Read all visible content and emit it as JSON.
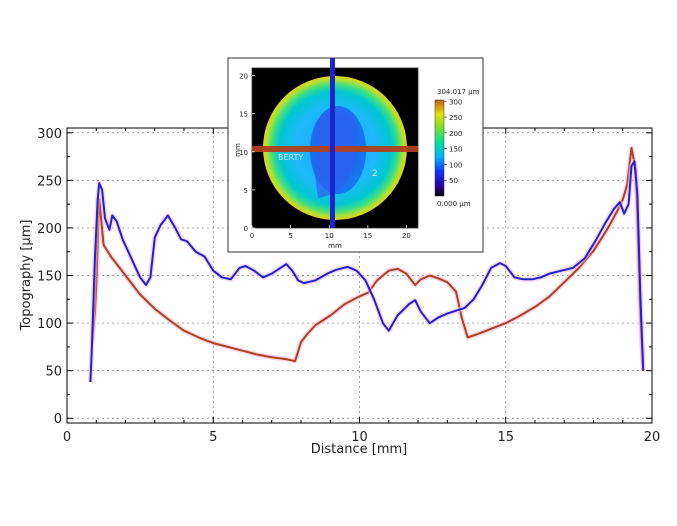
{
  "chart_data": {
    "type": "line",
    "xlabel": "Distance [mm]",
    "ylabel": "Topography [µm]",
    "xlim": [
      0,
      20
    ],
    "ylim": [
      -5,
      305
    ],
    "x_ticks": [
      0,
      5,
      10,
      15,
      20
    ],
    "y_ticks": [
      0,
      50,
      100,
      150,
      200,
      250,
      300
    ],
    "grid": true,
    "series": [
      {
        "color": "#b0401c",
        "points": [
          [
            0.85,
            78
          ],
          [
            0.95,
            110
          ],
          [
            1.0,
            140
          ],
          [
            1.05,
            185
          ],
          [
            1.1,
            230
          ],
          [
            1.15,
            215
          ],
          [
            1.25,
            182
          ],
          [
            1.5,
            170
          ],
          [
            2.0,
            150
          ],
          [
            2.5,
            130
          ],
          [
            3.0,
            115
          ],
          [
            3.5,
            103
          ],
          [
            4.0,
            92
          ],
          [
            4.5,
            85
          ],
          [
            5.0,
            79
          ],
          [
            5.5,
            75
          ],
          [
            6.0,
            71
          ],
          [
            6.5,
            67
          ],
          [
            7.0,
            64
          ],
          [
            7.5,
            62
          ],
          [
            7.8,
            60
          ],
          [
            8.0,
            80
          ],
          [
            8.2,
            88
          ],
          [
            8.5,
            98
          ],
          [
            9.0,
            108
          ],
          [
            9.5,
            120
          ],
          [
            10.0,
            128
          ],
          [
            10.3,
            132
          ],
          [
            10.6,
            145
          ],
          [
            11.0,
            155
          ],
          [
            11.3,
            157
          ],
          [
            11.6,
            152
          ],
          [
            11.9,
            140
          ],
          [
            12.1,
            146
          ],
          [
            12.4,
            150
          ],
          [
            12.7,
            147
          ],
          [
            13.0,
            143
          ],
          [
            13.3,
            133
          ],
          [
            13.5,
            105
          ],
          [
            13.7,
            85
          ],
          [
            14.0,
            88
          ],
          [
            14.5,
            94
          ],
          [
            15.0,
            100
          ],
          [
            15.5,
            108
          ],
          [
            16.0,
            117
          ],
          [
            16.5,
            128
          ],
          [
            17.0,
            143
          ],
          [
            17.5,
            158
          ],
          [
            18.0,
            176
          ],
          [
            18.5,
            200
          ],
          [
            18.8,
            217
          ],
          [
            19.0,
            230
          ],
          [
            19.15,
            245
          ],
          [
            19.3,
            284
          ],
          [
            19.45,
            260
          ],
          [
            19.6,
            110
          ],
          [
            19.7,
            50
          ]
        ]
      },
      {
        "color": "#1f23cc",
        "points": [
          [
            0.8,
            38
          ],
          [
            0.85,
            75
          ],
          [
            0.95,
            165
          ],
          [
            1.05,
            230
          ],
          [
            1.1,
            247
          ],
          [
            1.2,
            240
          ],
          [
            1.3,
            210
          ],
          [
            1.45,
            198
          ],
          [
            1.55,
            213
          ],
          [
            1.7,
            207
          ],
          [
            1.9,
            188
          ],
          [
            2.2,
            168
          ],
          [
            2.5,
            148
          ],
          [
            2.7,
            140
          ],
          [
            2.85,
            148
          ],
          [
            3.0,
            190
          ],
          [
            3.2,
            203
          ],
          [
            3.45,
            213
          ],
          [
            3.7,
            200
          ],
          [
            3.9,
            188
          ],
          [
            4.1,
            186
          ],
          [
            4.4,
            175
          ],
          [
            4.7,
            170
          ],
          [
            5.0,
            155
          ],
          [
            5.3,
            148
          ],
          [
            5.6,
            146
          ],
          [
            5.9,
            158
          ],
          [
            6.1,
            160
          ],
          [
            6.4,
            155
          ],
          [
            6.7,
            148
          ],
          [
            7.0,
            152
          ],
          [
            7.3,
            158
          ],
          [
            7.5,
            162
          ],
          [
            7.7,
            155
          ],
          [
            7.9,
            145
          ],
          [
            8.1,
            142
          ],
          [
            8.5,
            145
          ],
          [
            8.9,
            152
          ],
          [
            9.2,
            156
          ],
          [
            9.6,
            159
          ],
          [
            9.9,
            155
          ],
          [
            10.2,
            145
          ],
          [
            10.5,
            125
          ],
          [
            10.8,
            100
          ],
          [
            11.0,
            92
          ],
          [
            11.3,
            108
          ],
          [
            11.7,
            120
          ],
          [
            11.9,
            124
          ],
          [
            12.1,
            112
          ],
          [
            12.4,
            100
          ],
          [
            12.7,
            106
          ],
          [
            13.0,
            110
          ],
          [
            13.3,
            113
          ],
          [
            13.6,
            116
          ],
          [
            13.9,
            125
          ],
          [
            14.2,
            140
          ],
          [
            14.5,
            158
          ],
          [
            14.8,
            163
          ],
          [
            15.0,
            160
          ],
          [
            15.3,
            148
          ],
          [
            15.6,
            146
          ],
          [
            15.9,
            146
          ],
          [
            16.2,
            148
          ],
          [
            16.5,
            152
          ],
          [
            16.9,
            155
          ],
          [
            17.3,
            158
          ],
          [
            17.7,
            168
          ],
          [
            18.1,
            188
          ],
          [
            18.4,
            205
          ],
          [
            18.7,
            220
          ],
          [
            18.9,
            227
          ],
          [
            19.05,
            215
          ],
          [
            19.2,
            225
          ],
          [
            19.3,
            265
          ],
          [
            19.4,
            270
          ],
          [
            19.5,
            235
          ],
          [
            19.6,
            130
          ],
          [
            19.7,
            50
          ]
        ]
      }
    ],
    "inset": {
      "description_axes": "coin height map",
      "x_ticks": [
        0,
        5,
        10,
        15,
        20
      ],
      "y_ticks": [
        0,
        5,
        10,
        15,
        20
      ],
      "xlabel": "mm",
      "ylabel": "mm",
      "colorbar_max_label": "304.017 µm",
      "colorbar_min_label": "0.000 µm",
      "colorbar_ticks": [
        300,
        250,
        200,
        150,
        100,
        50
      ],
      "coin_text_left": "BERTY",
      "coin_text_right": "2"
    }
  }
}
